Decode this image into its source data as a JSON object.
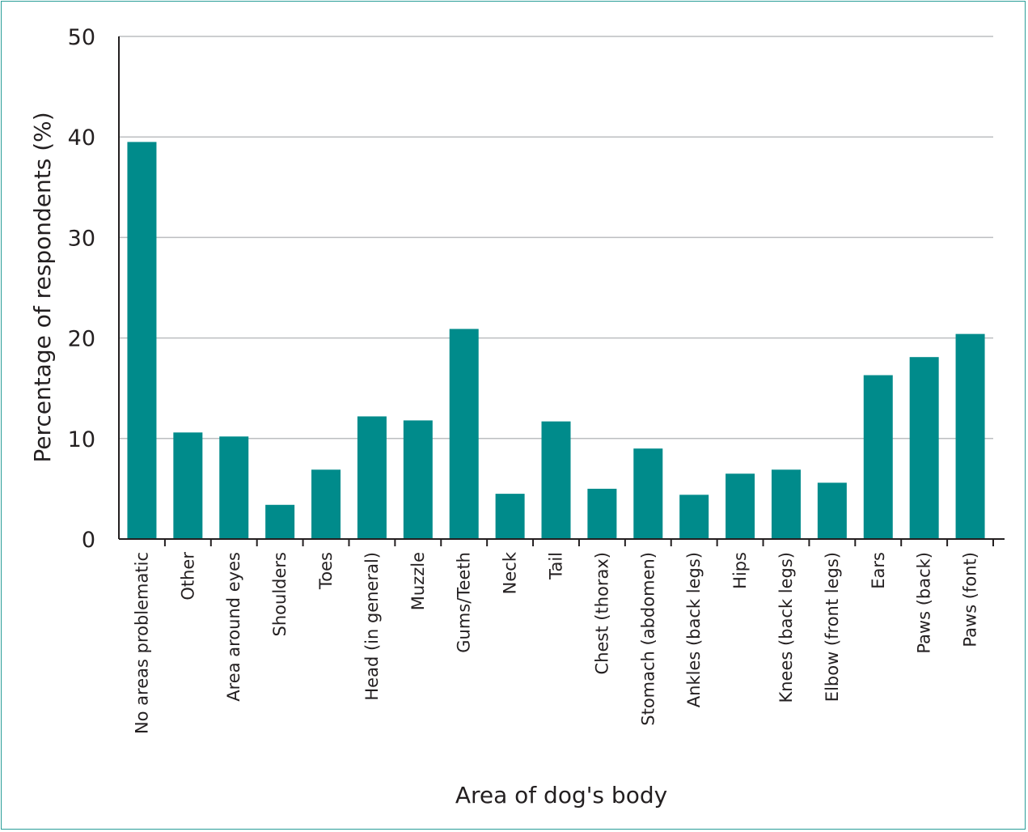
{
  "chart_data": {
    "type": "bar",
    "title": "",
    "xlabel": "Area of dog's body",
    "ylabel": "Percentage of respondents (%)",
    "ylim": [
      0,
      50
    ],
    "yticks": [
      0,
      10,
      20,
      30,
      40,
      50
    ],
    "grid": true,
    "bar_color": "#008b8b",
    "categories": [
      "No areas problematic",
      "Other",
      "Area around eyes",
      "Shoulders",
      "Toes",
      "Head (in general)",
      "Muzzle",
      "Gums/Teeth",
      "Neck",
      "Tail",
      "Chest (thorax)",
      "Stomach (abdomen)",
      "Ankles (back legs)",
      "Hips",
      "Knees (back legs)",
      "Elbow (front legs)",
      "Ears",
      "Paws (back)",
      "Paws (font)"
    ],
    "values": [
      39.5,
      10.6,
      10.2,
      3.4,
      6.9,
      12.2,
      11.8,
      20.9,
      4.5,
      11.7,
      5.0,
      9.0,
      4.4,
      6.5,
      6.9,
      5.6,
      16.3,
      18.1,
      20.4
    ]
  }
}
